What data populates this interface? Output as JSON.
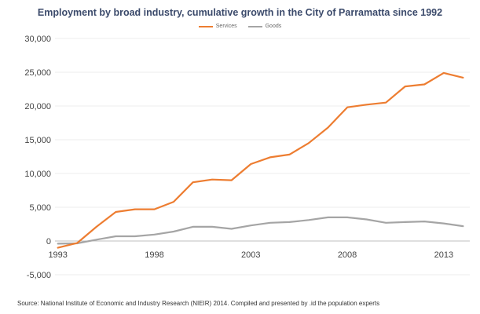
{
  "chart_data": {
    "type": "line",
    "title": "Employment by broad industry, cumulative growth in the City of Parramatta since 1992",
    "xlabel": "",
    "ylabel": "",
    "x": [
      1993,
      1994,
      1995,
      1996,
      1997,
      1998,
      1999,
      2000,
      2001,
      2002,
      2003,
      2004,
      2005,
      2006,
      2007,
      2008,
      2009,
      2010,
      2011,
      2012,
      2013,
      2014
    ],
    "series": [
      {
        "name": "Services",
        "color": "#ed7d31",
        "values": [
          -1000,
          -300,
          2100,
          4300,
          4700,
          4700,
          5800,
          8700,
          9100,
          9000,
          11400,
          12400,
          12800,
          14500,
          16800,
          19800,
          20200,
          20500,
          22900,
          23200,
          24900,
          24200
        ]
      },
      {
        "name": "Goods",
        "color": "#a5a5a5",
        "values": [
          -400,
          -350,
          200,
          700,
          700,
          950,
          1400,
          2100,
          2100,
          1800,
          2300,
          2700,
          2800,
          3100,
          3500,
          3500,
          3200,
          2700,
          2800,
          2900,
          2600,
          2200
        ]
      }
    ],
    "ylim": [
      -5000,
      30000
    ],
    "yticks": [
      -5000,
      0,
      5000,
      10000,
      15000,
      20000,
      25000,
      30000
    ],
    "ytick_labels": [
      "-5,000",
      "0",
      "5,000",
      "10,000",
      "15,000",
      "20,000",
      "25,000",
      "30,000"
    ],
    "xticks": [
      1993,
      1998,
      2003,
      2008,
      2013
    ],
    "xtick_labels": [
      "1993",
      "1998",
      "2003",
      "2008",
      "2013"
    ],
    "grid": true,
    "legend_position": "top-center"
  },
  "footer": {
    "source": "Source: National Institute of Economic and Industry Research (NIEIR) 2014. Compiled and presented by .id the population experts"
  }
}
